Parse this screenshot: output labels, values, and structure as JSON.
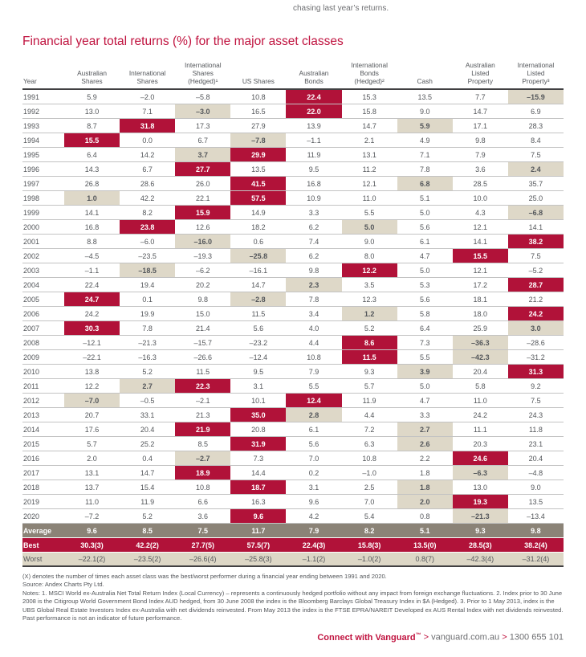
{
  "page": {
    "intro_text": "chasing last year’s returns.",
    "title": "Financial year total returns (%) for the major asset classes"
  },
  "colors": {
    "accent_red": "#c0133f",
    "cell_red": "#b11239",
    "highlight_beige": "#ded8c8",
    "average_gray": "#8b8377",
    "text_gray": "#53565a"
  },
  "table": {
    "columns": [
      {
        "lines": [
          "Year"
        ]
      },
      {
        "lines": [
          "Australian",
          "Shares"
        ]
      },
      {
        "lines": [
          "International",
          "Shares"
        ]
      },
      {
        "lines": [
          "International",
          "Shares",
          "(Hedged)¹"
        ]
      },
      {
        "lines": [
          "US Shares"
        ]
      },
      {
        "lines": [
          "Australian",
          "Bonds"
        ]
      },
      {
        "lines": [
          "International",
          "Bonds",
          "(Hedged)²"
        ]
      },
      {
        "lines": [
          "Cash"
        ]
      },
      {
        "lines": [
          "Australian",
          "Listed",
          "Property"
        ]
      },
      {
        "lines": [
          "International",
          "Listed",
          "Property³"
        ]
      }
    ],
    "rows": [
      {
        "year": "1991",
        "values": [
          "5.9",
          "–2.0",
          "–5.8",
          "10.8",
          "22.4",
          "15.3",
          "13.5",
          "7.7",
          "–15.9"
        ],
        "best": 4,
        "worst": 8
      },
      {
        "year": "1992",
        "values": [
          "13.0",
          "7.1",
          "–3.0",
          "16.5",
          "22.0",
          "15.8",
          "9.0",
          "14.7",
          "6.9"
        ],
        "best": 4,
        "worst": 2
      },
      {
        "year": "1993",
        "values": [
          "8.7",
          "31.8",
          "17.3",
          "27.9",
          "13.9",
          "14.7",
          "5.9",
          "17.1",
          "28.3"
        ],
        "best": 1,
        "worst": 6
      },
      {
        "year": "1994",
        "values": [
          "15.5",
          "0.0",
          "6.7",
          "–7.8",
          "–1.1",
          "2.1",
          "4.9",
          "9.8",
          "8.4"
        ],
        "best": 0,
        "worst": 3
      },
      {
        "year": "1995",
        "values": [
          "6.4",
          "14.2",
          "3.7",
          "29.9",
          "11.9",
          "13.1",
          "7.1",
          "7.9",
          "7.5"
        ],
        "best": 3,
        "worst": 2
      },
      {
        "year": "1996",
        "values": [
          "14.3",
          "6.7",
          "27.7",
          "13.5",
          "9.5",
          "11.2",
          "7.8",
          "3.6",
          "2.4"
        ],
        "best": 2,
        "worst": 8
      },
      {
        "year": "1997",
        "values": [
          "26.8",
          "28.6",
          "26.0",
          "41.5",
          "16.8",
          "12.1",
          "6.8",
          "28.5",
          "35.7"
        ],
        "best": 3,
        "worst": 6
      },
      {
        "year": "1998",
        "values": [
          "1.0",
          "42.2",
          "22.1",
          "57.5",
          "10.9",
          "11.0",
          "5.1",
          "10.0",
          "25.0"
        ],
        "best": 3,
        "worst": 0
      },
      {
        "year": "1999",
        "values": [
          "14.1",
          "8.2",
          "15.9",
          "14.9",
          "3.3",
          "5.5",
          "5.0",
          "4.3",
          "–6.8"
        ],
        "best": 2,
        "worst": 8
      },
      {
        "year": "2000",
        "values": [
          "16.8",
          "23.8",
          "12.6",
          "18.2",
          "6.2",
          "5.0",
          "5.6",
          "12.1",
          "14.1"
        ],
        "best": 1,
        "worst": 5
      },
      {
        "year": "2001",
        "values": [
          "8.8",
          "–6.0",
          "–16.0",
          "0.6",
          "7.4",
          "9.0",
          "6.1",
          "14.1",
          "38.2"
        ],
        "best": 8,
        "worst": 2
      },
      {
        "year": "2002",
        "values": [
          "–4.5",
          "–23.5",
          "–19.3",
          "–25.8",
          "6.2",
          "8.0",
          "4.7",
          "15.5",
          "7.5"
        ],
        "best": 7,
        "worst": 3
      },
      {
        "year": "2003",
        "values": [
          "–1.1",
          "–18.5",
          "–6.2",
          "–16.1",
          "9.8",
          "12.2",
          "5.0",
          "12.1",
          "–5.2"
        ],
        "best": 5,
        "worst": 1
      },
      {
        "year": "2004",
        "values": [
          "22.4",
          "19.4",
          "20.2",
          "14.7",
          "2.3",
          "3.5",
          "5.3",
          "17.2",
          "28.7"
        ],
        "best": 8,
        "worst": 4
      },
      {
        "year": "2005",
        "values": [
          "24.7",
          "0.1",
          "9.8",
          "–2.8",
          "7.8",
          "12.3",
          "5.6",
          "18.1",
          "21.2"
        ],
        "best": 0,
        "worst": 3
      },
      {
        "year": "2006",
        "values": [
          "24.2",
          "19.9",
          "15.0",
          "11.5",
          "3.4",
          "1.2",
          "5.8",
          "18.0",
          "24.2"
        ],
        "best": 8,
        "worst": 5
      },
      {
        "year": "2007",
        "values": [
          "30.3",
          "7.8",
          "21.4",
          "5.6",
          "4.0",
          "5.2",
          "6.4",
          "25.9",
          "3.0"
        ],
        "best": 0,
        "worst": 8
      },
      {
        "year": "2008",
        "values": [
          "–12.1",
          "–21.3",
          "–15.7",
          "–23.2",
          "4.4",
          "8.6",
          "7.3",
          "–36.3",
          "–28.6"
        ],
        "best": 5,
        "worst": 7
      },
      {
        "year": "2009",
        "values": [
          "–22.1",
          "–16.3",
          "–26.6",
          "–12.4",
          "10.8",
          "11.5",
          "5.5",
          "–42.3",
          "–31.2"
        ],
        "best": 5,
        "worst": 7
      },
      {
        "year": "2010",
        "values": [
          "13.8",
          "5.2",
          "11.5",
          "9.5",
          "7.9",
          "9.3",
          "3.9",
          "20.4",
          "31.3"
        ],
        "best": 8,
        "worst": 6
      },
      {
        "year": "2011",
        "values": [
          "12.2",
          "2.7",
          "22.3",
          "3.1",
          "5.5",
          "5.7",
          "5.0",
          "5.8",
          "9.2"
        ],
        "best": 2,
        "worst": 1
      },
      {
        "year": "2012",
        "values": [
          "–7.0",
          "–0.5",
          "–2.1",
          "10.1",
          "12.4",
          "11.9",
          "4.7",
          "11.0",
          "7.5"
        ],
        "best": 4,
        "worst": 0
      },
      {
        "year": "2013",
        "values": [
          "20.7",
          "33.1",
          "21.3",
          "35.0",
          "2.8",
          "4.4",
          "3.3",
          "24.2",
          "24.3"
        ],
        "best": 3,
        "worst": 4
      },
      {
        "year": "2014",
        "values": [
          "17.6",
          "20.4",
          "21.9",
          "20.8",
          "6.1",
          "7.2",
          "2.7",
          "11.1",
          "11.8"
        ],
        "best": 2,
        "worst": 6
      },
      {
        "year": "2015",
        "values": [
          "5.7",
          "25.2",
          "8.5",
          "31.9",
          "5.6",
          "6.3",
          "2.6",
          "20.3",
          "23.1"
        ],
        "best": 3,
        "worst": 6
      },
      {
        "year": "2016",
        "values": [
          "2.0",
          "0.4",
          "–2.7",
          "7.3",
          "7.0",
          "10.8",
          "2.2",
          "24.6",
          "20.4"
        ],
        "best": 7,
        "worst": 2
      },
      {
        "year": "2017",
        "values": [
          "13.1",
          "14.7",
          "18.9",
          "14.4",
          "0.2",
          "–1.0",
          "1.8",
          "–6.3",
          "–4.8"
        ],
        "best": 2,
        "worst": 7
      },
      {
        "year": "2018",
        "values": [
          "13.7",
          "15.4",
          "10.8",
          "18.7",
          "3.1",
          "2.5",
          "1.8",
          "13.0",
          "9.0"
        ],
        "best": 3,
        "worst": 6
      },
      {
        "year": "2019",
        "values": [
          "11.0",
          "11.9",
          "6.6",
          "16.3",
          "9.6",
          "7.0",
          "2.0",
          "19.3",
          "13.5"
        ],
        "best": 7,
        "worst": 6
      },
      {
        "year": "2020",
        "values": [
          "–7.2",
          "5.2",
          "3.6",
          "9.6",
          "4.2",
          "5.4",
          "0.8",
          "–21.3",
          "–13.4"
        ],
        "best": 3,
        "worst": 7
      }
    ],
    "summary": [
      {
        "key": "average",
        "label": "Average",
        "values": [
          "9.6",
          "8.5",
          "7.5",
          "11.7",
          "7.9",
          "8.2",
          "5.1",
          "9.3",
          "9.8"
        ]
      },
      {
        "key": "best-row",
        "label": "Best",
        "values": [
          "30.3(3)",
          "42.2(2)",
          "27.7(5)",
          "57.5(7)",
          "22.4(3)",
          "15.8(3)",
          "13.5(0)",
          "28.5(3)",
          "38.2(4)"
        ]
      },
      {
        "key": "worst-row",
        "label": "Worst",
        "values": [
          "–22.1(2)",
          "–23.5(2)",
          "–26.6(4)",
          "–25.8(3)",
          "–1.1(2)",
          "–1.0(2)",
          "0.8(7)",
          "–42.3(4)",
          "–31.2(4)"
        ]
      }
    ]
  },
  "footnotes": {
    "denotes": "(X) denotes the number of times each asset class was the best/worst performer during a financial year ending between 1991 and 2020.",
    "source": "Source: Andex Charts Pty Ltd.",
    "notes": "Notes: 1. MSCI World ex-Australia Net Total Return Index (Local Currency) – represents a continuously hedged portfolio without any impact from foreign exchange fluctuations. 2. Index prior to 30 June 2008 is the Citigroup World Government Bond Index AUD hedged, from 30 June 2008 the index is the Bloomberg Barclays Global Treasury Index in $A (Hedged).  3. Prior to 1 May 2013, index is the UBS Global Real Estate Investors Index ex-Australia with net dividends reinvested. From May 2013 the index is the FTSE EPRA/NAREIT Developed ex AUS Rental Index with net dividends reinvested. Past performance is not an indicator of future performance."
  },
  "footer": {
    "connect": "Connect with Vanguard",
    "trademark": "™",
    "separator": ">",
    "url": "vanguard.com.au",
    "phone": "1300 655 101"
  }
}
